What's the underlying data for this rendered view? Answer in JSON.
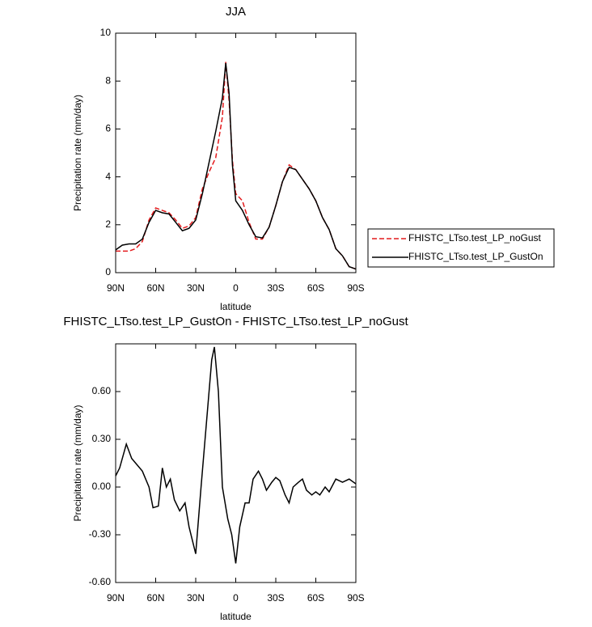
{
  "chart_data": [
    {
      "type": "line",
      "title": "JJA",
      "xlabel": "latitude",
      "ylabel": "Precipitation rate (mm/day)",
      "x": [
        90,
        85,
        80,
        75,
        70,
        65,
        60,
        55,
        50,
        45,
        40,
        35,
        30,
        25,
        20,
        15,
        10,
        7.5,
        5,
        2.5,
        0,
        -5,
        -10,
        -15,
        -20,
        -25,
        -30,
        -35,
        -40,
        -45,
        -50,
        -55,
        -60,
        -65,
        -70,
        -75,
        -80,
        -85,
        -90
      ],
      "xlim": [
        90,
        -90
      ],
      "xticks": [
        {
          "value": 90,
          "label": "90N"
        },
        {
          "value": 60,
          "label": "60N"
        },
        {
          "value": 30,
          "label": "30N"
        },
        {
          "value": 0,
          "label": "0"
        },
        {
          "value": -30,
          "label": "30S"
        },
        {
          "value": -60,
          "label": "60S"
        },
        {
          "value": -90,
          "label": "90S"
        }
      ],
      "ylim": [
        0,
        10
      ],
      "yticks": [
        0,
        2,
        4,
        6,
        8,
        10
      ],
      "legend": "right",
      "series": [
        {
          "name": "FHISTC_LTso.test_LP_noGust",
          "color": "#e41a1c",
          "linestyle": "dashed",
          "values": [
            0.9,
            0.9,
            0.9,
            1.0,
            1.3,
            2.2,
            2.7,
            2.6,
            2.5,
            2.2,
            1.85,
            1.95,
            2.3,
            3.5,
            4.2,
            4.8,
            6.5,
            8.8,
            7.2,
            4.7,
            3.3,
            3.0,
            2.1,
            1.4,
            1.4,
            1.9,
            2.8,
            3.8,
            4.5,
            4.3,
            3.9,
            3.5,
            3.0,
            2.3,
            1.8,
            1.0,
            0.7,
            0.25,
            0.15
          ]
        },
        {
          "name": "FHISTC_LTso.test_LP_GustOn",
          "color": "#000000",
          "linestyle": "solid",
          "values": [
            0.95,
            1.15,
            1.2,
            1.2,
            1.4,
            2.1,
            2.6,
            2.5,
            2.45,
            2.1,
            1.75,
            1.85,
            2.2,
            3.3,
            4.6,
            5.9,
            7.3,
            8.75,
            7.5,
            4.5,
            3.0,
            2.6,
            2.0,
            1.5,
            1.45,
            1.9,
            2.8,
            3.8,
            4.4,
            4.3,
            3.9,
            3.5,
            3.0,
            2.3,
            1.8,
            1.0,
            0.7,
            0.25,
            0.15
          ]
        }
      ]
    },
    {
      "type": "line",
      "title": "FHISTC_LTso.test_LP_GustOn - FHISTC_LTso.test_LP_noGust",
      "xlabel": "latitude",
      "ylabel": "Precipitation rate (mm/day)",
      "x": [
        90,
        87,
        82,
        78,
        75,
        70,
        65,
        62,
        58,
        55,
        52,
        49,
        46,
        42,
        38,
        35,
        30,
        26,
        22,
        18,
        16,
        13,
        10,
        6,
        3,
        0,
        -3,
        -7,
        -10,
        -13,
        -17,
        -20,
        -23,
        -27,
        -30,
        -33,
        -37,
        -40,
        -43,
        -47,
        -50,
        -53,
        -57,
        -60,
        -63,
        -67,
        -70,
        -75,
        -80,
        -85,
        -90
      ],
      "xlim": [
        90,
        -90
      ],
      "xticks": [
        {
          "value": 90,
          "label": "90N"
        },
        {
          "value": 60,
          "label": "60N"
        },
        {
          "value": 30,
          "label": "30N"
        },
        {
          "value": 0,
          "label": "0"
        },
        {
          "value": -30,
          "label": "30S"
        },
        {
          "value": -60,
          "label": "60S"
        },
        {
          "value": -90,
          "label": "90S"
        }
      ],
      "ylim": [
        -0.6,
        0.9
      ],
      "yticks": [
        {
          "value": -0.6,
          "label": "-0.60"
        },
        {
          "value": -0.3,
          "label": "-0.30"
        },
        {
          "value": 0,
          "label": "0.00"
        },
        {
          "value": 0.3,
          "label": "0.30"
        },
        {
          "value": 0.6,
          "label": "0.60"
        }
      ],
      "series": [
        {
          "color": "#000000",
          "linestyle": "solid",
          "values": [
            0.07,
            0.12,
            0.27,
            0.18,
            0.15,
            0.1,
            0.0,
            -0.13,
            -0.12,
            0.12,
            0.0,
            0.05,
            -0.08,
            -0.15,
            -0.1,
            -0.25,
            -0.42,
            0.0,
            0.4,
            0.8,
            0.88,
            0.6,
            0.0,
            -0.2,
            -0.3,
            -0.48,
            -0.25,
            -0.1,
            -0.1,
            0.05,
            0.1,
            0.05,
            -0.02,
            0.03,
            0.06,
            0.04,
            -0.05,
            -0.1,
            0.0,
            0.03,
            0.05,
            -0.02,
            -0.05,
            -0.03,
            -0.05,
            0.0,
            -0.03,
            0.05,
            0.03,
            0.05,
            0.02
          ]
        }
      ]
    }
  ]
}
